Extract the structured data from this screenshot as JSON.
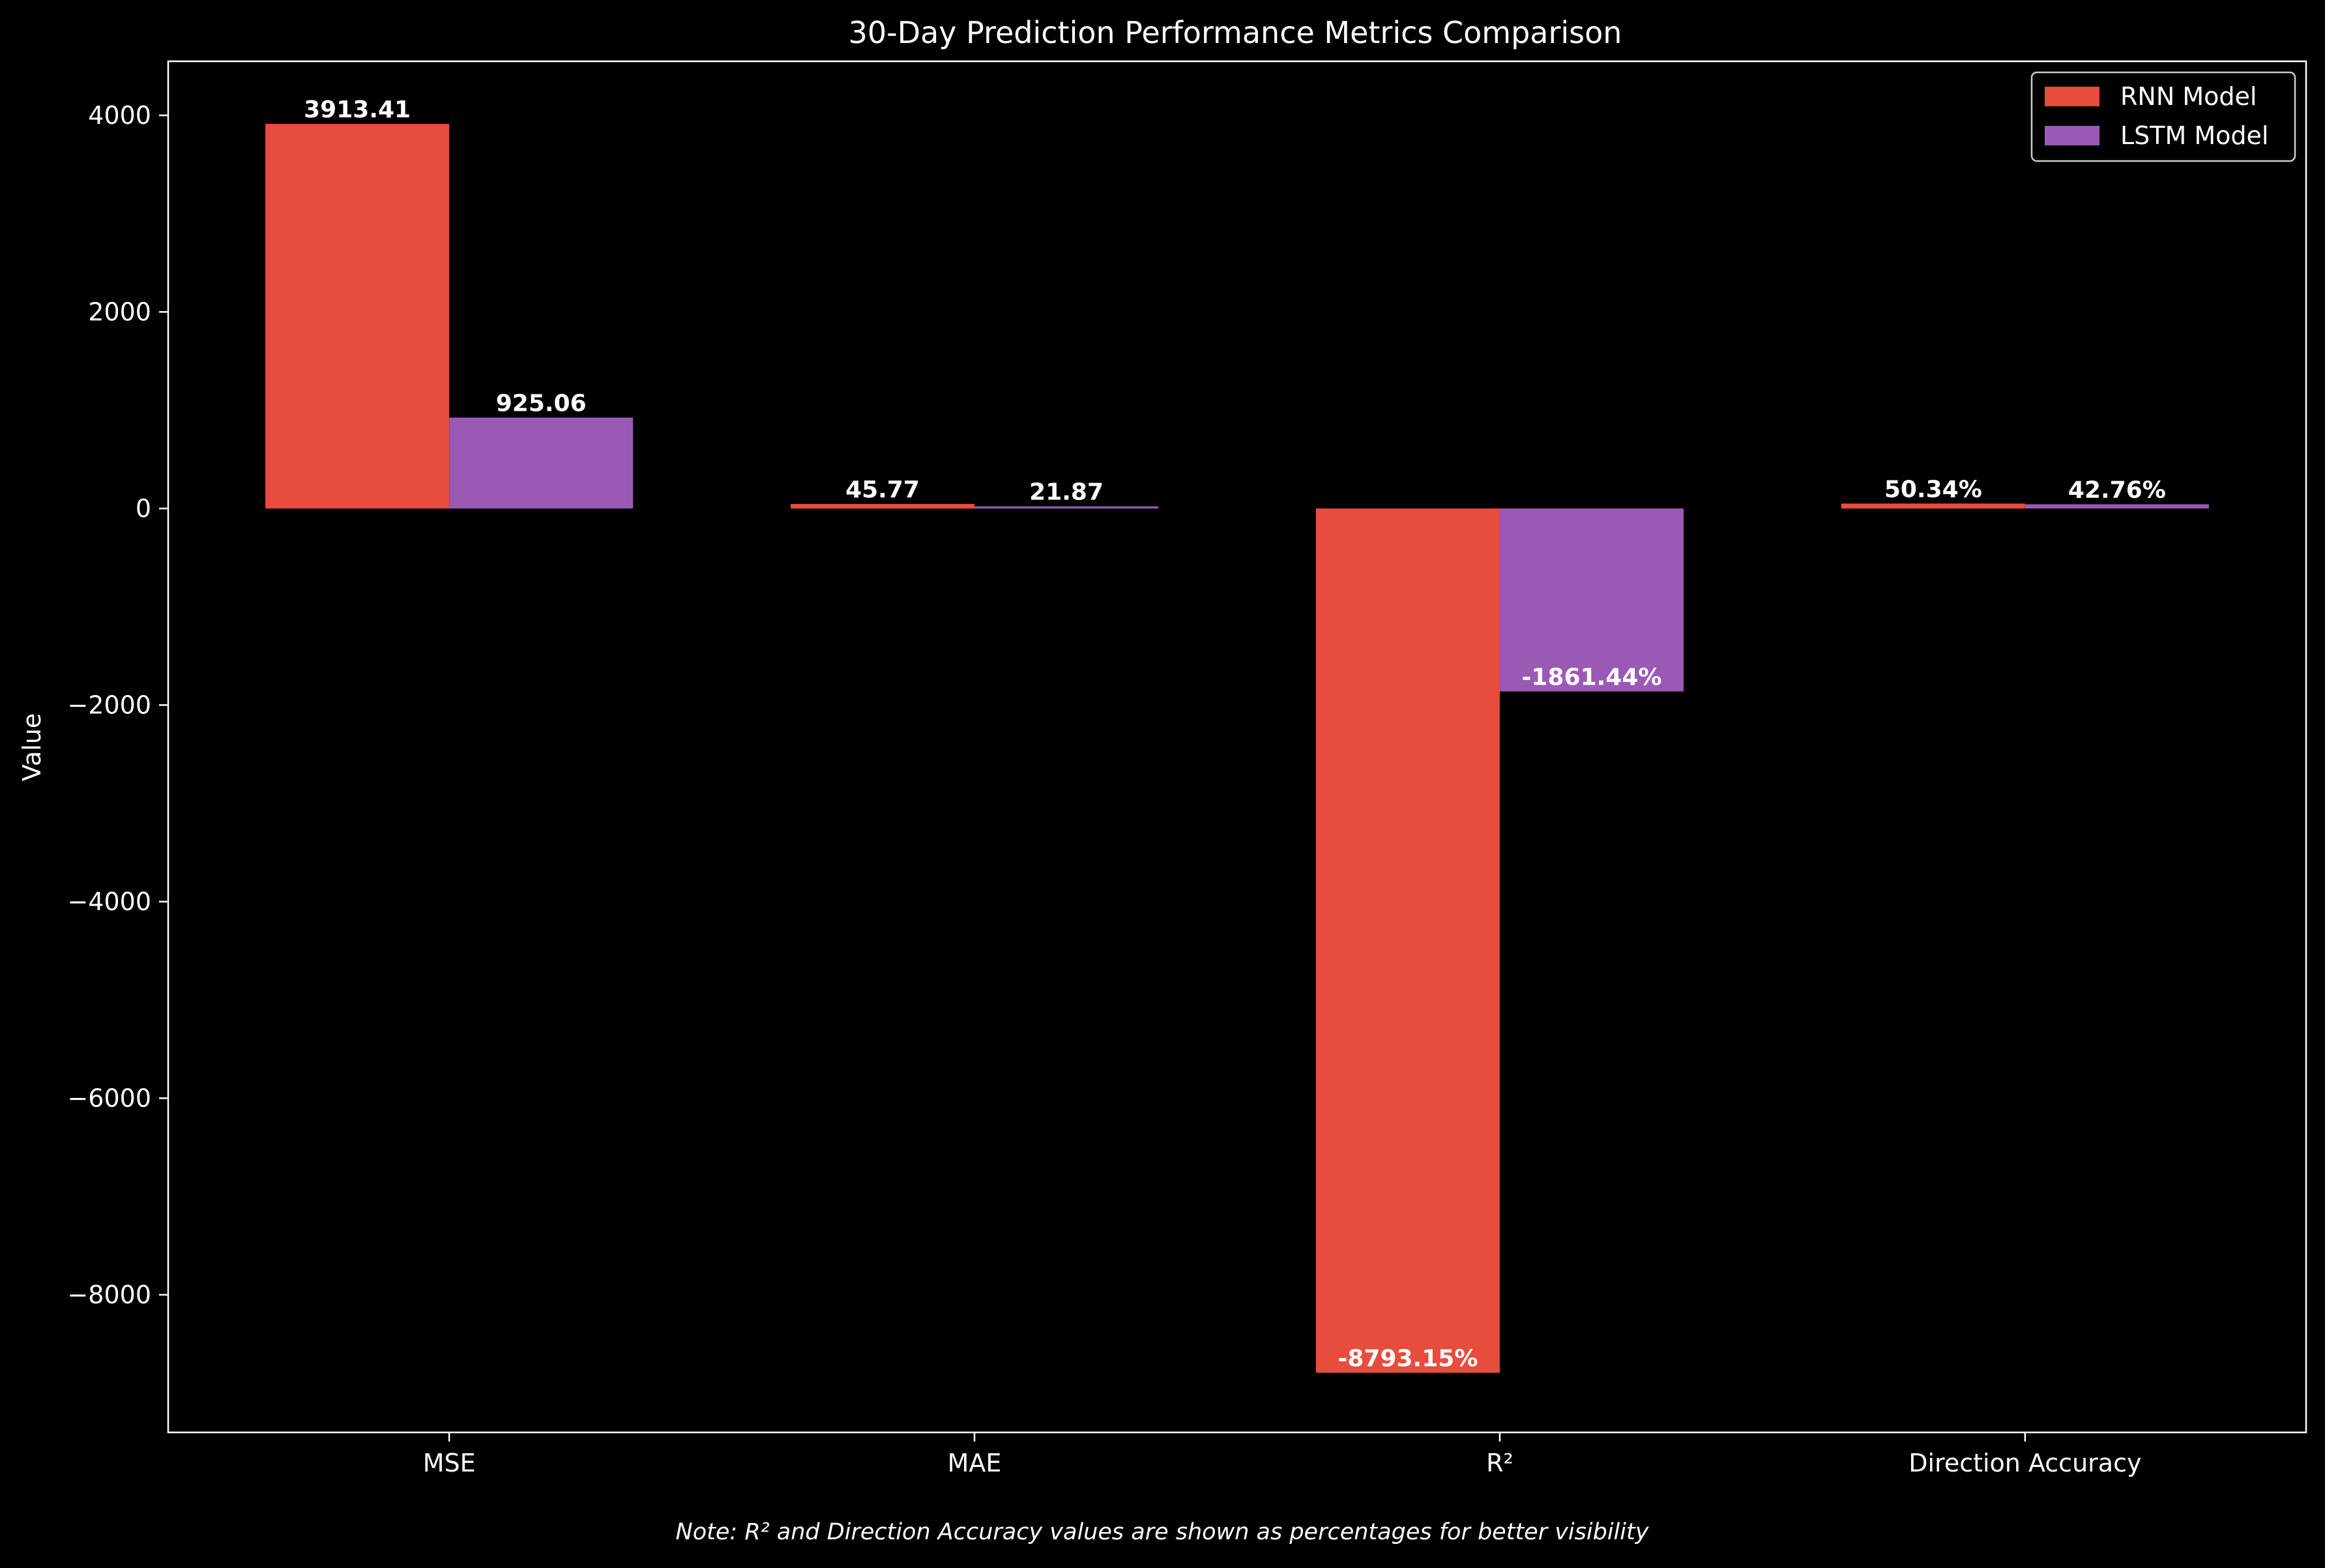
{
  "chart_data": {
    "type": "bar",
    "title": "30-Day Prediction Performance Metrics Comparison",
    "xlabel": "",
    "ylabel": "Value",
    "categories": [
      "MSE",
      "MAE",
      "R²",
      "Direction Accuracy"
    ],
    "series": [
      {
        "name": "RNN Model",
        "color": "#e74c3c",
        "values": [
          3913.41,
          45.77,
          -8793.15,
          50.34
        ],
        "value_labels": [
          "3913.41",
          "45.77",
          "-8793.15%",
          "50.34%"
        ]
      },
      {
        "name": "LSTM Model",
        "color": "#9b59b6",
        "values": [
          925.06,
          21.87,
          -1861.44,
          42.76
        ],
        "value_labels": [
          "925.06",
          "21.87",
          "-1861.44%",
          "42.76%"
        ]
      }
    ],
    "ylim": [
      -9400,
      4550
    ],
    "yticks": [
      4000,
      2000,
      0,
      -2000,
      -4000,
      -6000,
      -8000
    ],
    "ytick_labels": [
      "4000",
      "2000",
      "0",
      "−2000",
      "−4000",
      "−6000",
      "−8000"
    ],
    "grid": false,
    "legend_position": "top-right",
    "note": "Note: R² and Direction Accuracy values are shown as percentages for better visibility"
  }
}
